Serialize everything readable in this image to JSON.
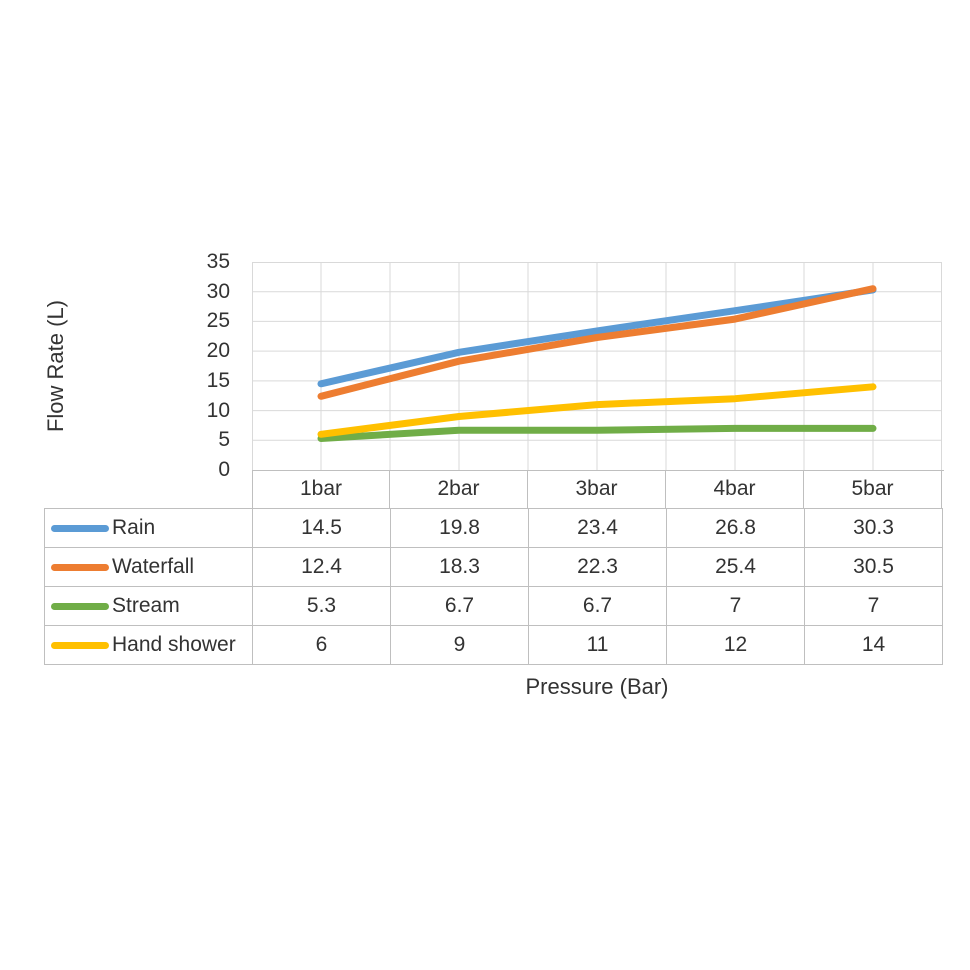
{
  "chart_data": {
    "type": "line",
    "categories": [
      "1bar",
      "2bar",
      "3bar",
      "4bar",
      "5bar"
    ],
    "series": [
      {
        "name": "Rain",
        "color": "#5B9BD5",
        "values": [
          14.5,
          19.8,
          23.4,
          26.8,
          30.3
        ]
      },
      {
        "name": "Waterfall",
        "color": "#ED7D31",
        "values": [
          12.4,
          18.3,
          22.3,
          25.4,
          30.5
        ]
      },
      {
        "name": "Stream",
        "color": "#70AD47",
        "values": [
          5.3,
          6.7,
          6.7,
          7,
          7
        ]
      },
      {
        "name": "Hand shower",
        "color": "#FFC000",
        "values": [
          6,
          9,
          11,
          12,
          14
        ]
      }
    ],
    "title": "",
    "xlabel": "Pressure (Bar)",
    "ylabel": "Flow Rate (L)",
    "ylim": [
      0,
      35
    ],
    "y_tick_step": 5,
    "y_tick_labels": [
      "35",
      "30",
      "25",
      "20",
      "15",
      "10",
      "5",
      "0"
    ],
    "grid": true,
    "legend_position": "data-table-left",
    "data_table": true
  },
  "styles": {
    "background": "#FFFFFF",
    "text_color": "#333333",
    "gridline_color": "#D9D9D9",
    "axis_line_color": "#BFBFBF",
    "table_border_color": "#BFBFBF"
  }
}
